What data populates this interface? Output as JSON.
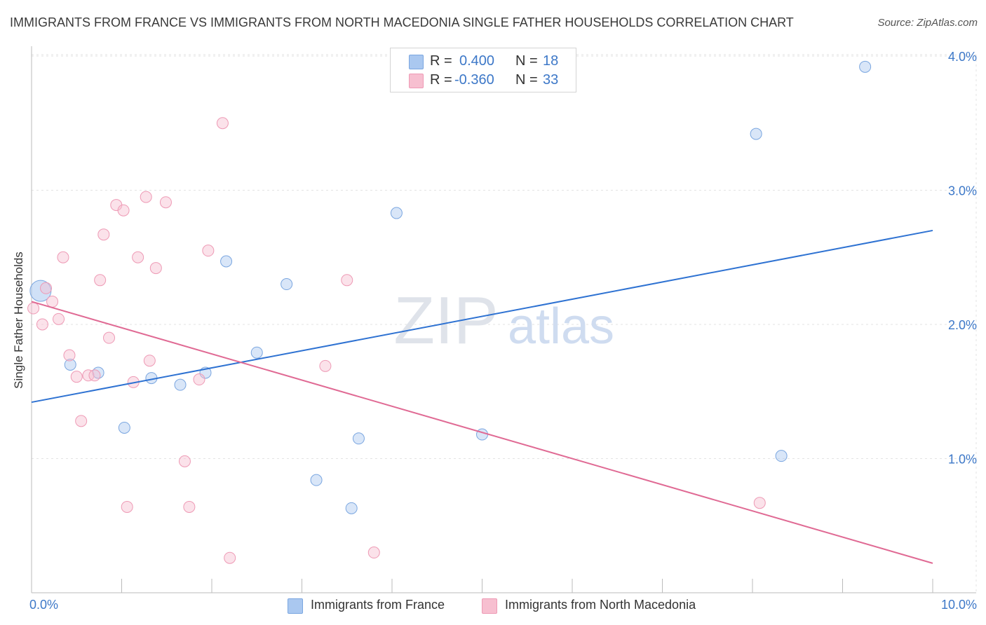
{
  "title": "IMMIGRANTS FROM FRANCE VS IMMIGRANTS FROM NORTH MACEDONIA SINGLE FATHER HOUSEHOLDS CORRELATION CHART",
  "source": "Source: ZipAtlas.com",
  "watermark": {
    "zip": "ZIP",
    "atlas": "atlas"
  },
  "legend": {
    "rows": [
      {
        "r_label": "R =",
        "r_value": "0.400",
        "n_label": "N =",
        "n_value": "18",
        "color": "#aac8f0",
        "border": "#7aa6e0"
      },
      {
        "r_label": "R =",
        "r_value": "-0.360",
        "n_label": "N =",
        "n_value": "33",
        "color": "#f7bfd0",
        "border": "#ee9ab5"
      }
    ]
  },
  "chart_data": {
    "type": "scatter",
    "title": "IMMIGRANTS FROM FRANCE VS IMMIGRANTS FROM NORTH MACEDONIA SINGLE FATHER HOUSEHOLDS CORRELATION CHART",
    "xlabel": "",
    "ylabel": "Single Father Households",
    "xlim": [
      0,
      10
    ],
    "ylim": [
      0,
      4.1
    ],
    "x_tick_labels": [
      {
        "value": 0,
        "label": "0.0%"
      },
      {
        "value": 10,
        "label": "10.0%"
      }
    ],
    "y_tick_labels": [
      {
        "value": 1,
        "label": "1.0%"
      },
      {
        "value": 2,
        "label": "2.0%"
      },
      {
        "value": 3,
        "label": "3.0%"
      },
      {
        "value": 4,
        "label": "4.0%"
      }
    ],
    "grid": true,
    "legend_position": "top-center",
    "series": [
      {
        "name": "Immigrants from France",
        "color": "#aac8f0",
        "stroke": "#7aa6e0",
        "line_color": "#2e72d2",
        "trend": [
          [
            0,
            1.42
          ],
          [
            10,
            2.7
          ]
        ],
        "points": [
          [
            0.1,
            2.25,
            "large"
          ],
          [
            0.43,
            1.7
          ],
          [
            0.74,
            1.64
          ],
          [
            1.03,
            1.23
          ],
          [
            1.33,
            1.6
          ],
          [
            1.65,
            1.55
          ],
          [
            1.93,
            1.64
          ],
          [
            2.16,
            2.47
          ],
          [
            2.5,
            1.79
          ],
          [
            2.83,
            2.3
          ],
          [
            3.16,
            0.84
          ],
          [
            3.55,
            0.63
          ],
          [
            3.63,
            1.15
          ],
          [
            4.05,
            2.83
          ],
          [
            5.0,
            1.18
          ],
          [
            8.04,
            3.42
          ],
          [
            8.32,
            1.02
          ],
          [
            9.25,
            3.92
          ]
        ]
      },
      {
        "name": "Immigrants from North Macedonia",
        "color": "#f7bfd0",
        "stroke": "#ee9ab5",
        "line_color": "#e06a94",
        "trend": [
          [
            0,
            2.17
          ],
          [
            10,
            0.22
          ]
        ],
        "points": [
          [
            0.02,
            2.12
          ],
          [
            0.12,
            2.0
          ],
          [
            0.16,
            2.27
          ],
          [
            0.23,
            2.17
          ],
          [
            0.3,
            2.04
          ],
          [
            0.35,
            2.5
          ],
          [
            0.42,
            1.77
          ],
          [
            0.5,
            1.61
          ],
          [
            0.55,
            1.28
          ],
          [
            0.63,
            1.62
          ],
          [
            0.7,
            1.62
          ],
          [
            0.76,
            2.33
          ],
          [
            0.8,
            2.67
          ],
          [
            0.86,
            1.9
          ],
          [
            0.94,
            2.89
          ],
          [
            1.02,
            2.85
          ],
          [
            1.06,
            0.64
          ],
          [
            1.13,
            1.57
          ],
          [
            1.18,
            2.5
          ],
          [
            1.27,
            2.95
          ],
          [
            1.31,
            1.73
          ],
          [
            1.38,
            2.42
          ],
          [
            1.49,
            2.91
          ],
          [
            1.7,
            0.98
          ],
          [
            1.75,
            0.64
          ],
          [
            1.86,
            1.59
          ],
          [
            1.96,
            2.55
          ],
          [
            2.12,
            3.5
          ],
          [
            2.2,
            0.26
          ],
          [
            3.26,
            1.69
          ],
          [
            3.5,
            2.33
          ],
          [
            3.8,
            0.3
          ],
          [
            8.08,
            0.67
          ]
        ]
      }
    ]
  }
}
